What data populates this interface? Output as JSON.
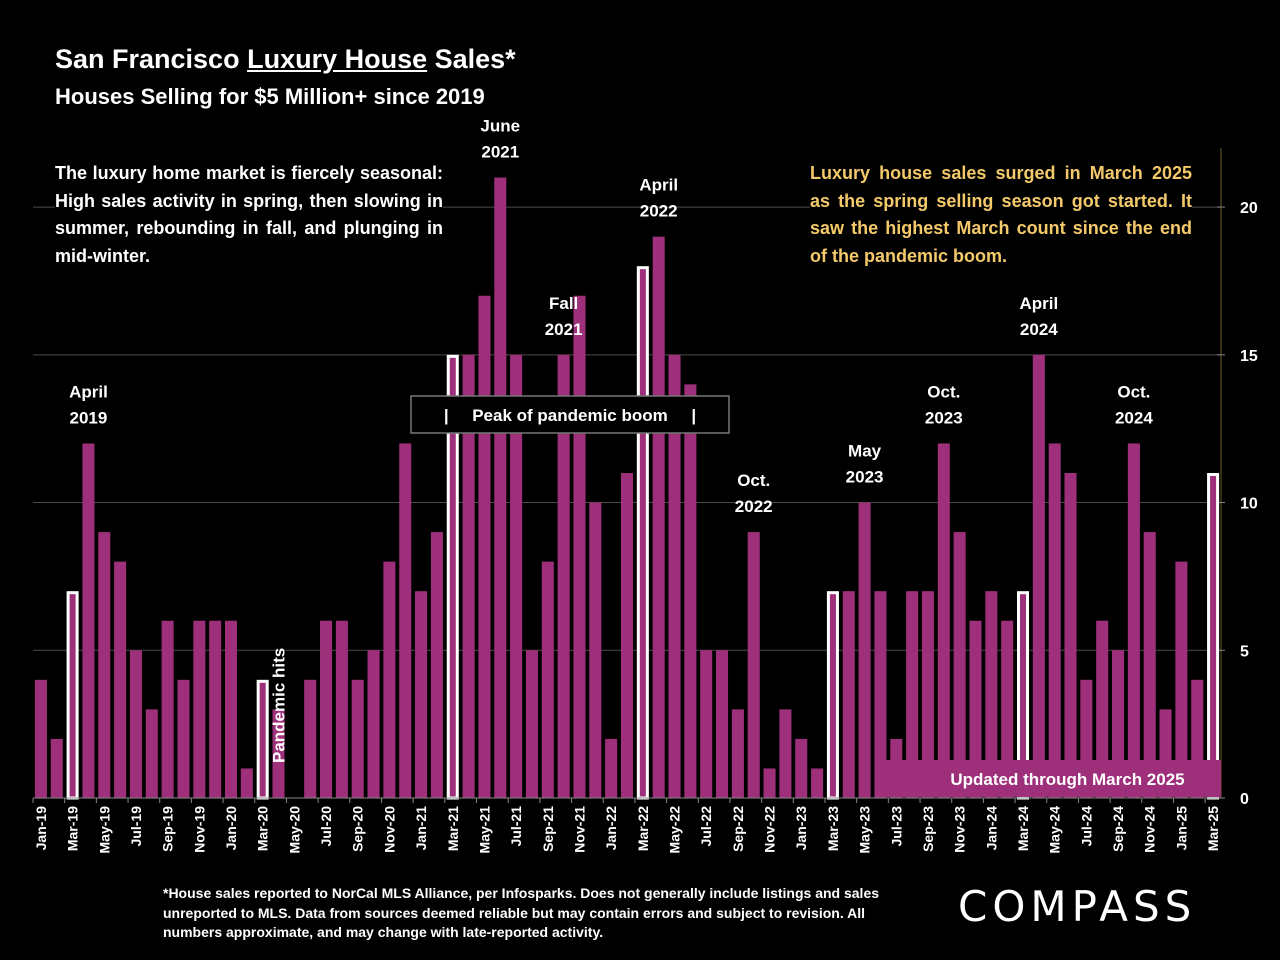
{
  "header": {
    "title_prefix": "San Francisco ",
    "title_underlined": "Luxury House",
    "title_suffix": " Sales*",
    "subtitle": "Houses Selling for $5 Million+ since 2019"
  },
  "notes": {
    "left": "The luxury home market is fiercely seasonal:  High sales activity in spring, then slowing in summer, rebounding in fall, and plunging in mid-winter.",
    "right": "Luxury house sales surged in March 2025 as the spring selling season got started. It saw the highest March count since the end of the pandemic boom."
  },
  "footnote": "*House sales reported to NorCal MLS Alliance, per Infosparks. Does not generally include listings and sales unreported to MLS. Data from sources deemed reliable but may contain errors and subject to revision.  All numbers approximate, and may change with late-reported activity.",
  "logo": "COMPASS",
  "chart_data": {
    "type": "bar",
    "title": "San Francisco Luxury House Sales*",
    "subtitle": "Houses Selling for $5 Million+ since 2019",
    "xlabel": "",
    "ylabel": "",
    "ylim": [
      0,
      22
    ],
    "yticks": [
      0,
      5,
      10,
      15,
      20
    ],
    "y_axis_side": "right",
    "grid": true,
    "bar_color": "#9e2f7a",
    "highlight_outline_color": "#ffffff",
    "categories": [
      "Jan-19",
      "Feb-19",
      "Mar-19",
      "Apr-19",
      "May-19",
      "Jun-19",
      "Jul-19",
      "Aug-19",
      "Sep-19",
      "Oct-19",
      "Nov-19",
      "Dec-19",
      "Jan-20",
      "Feb-20",
      "Mar-20",
      "Apr-20",
      "May-20",
      "Jun-20",
      "Jul-20",
      "Aug-20",
      "Sep-20",
      "Oct-20",
      "Nov-20",
      "Dec-20",
      "Jan-21",
      "Feb-21",
      "Mar-21",
      "Apr-21",
      "May-21",
      "Jun-21",
      "Jul-21",
      "Aug-21",
      "Sep-21",
      "Oct-21",
      "Nov-21",
      "Dec-21",
      "Jan-22",
      "Feb-22",
      "Mar-22",
      "Apr-22",
      "May-22",
      "Jun-22",
      "Jul-22",
      "Aug-22",
      "Sep-22",
      "Oct-22",
      "Nov-22",
      "Dec-22",
      "Jan-23",
      "Feb-23",
      "Mar-23",
      "Apr-23",
      "May-23",
      "Jun-23",
      "Jul-23",
      "Aug-23",
      "Sep-23",
      "Oct-23",
      "Nov-23",
      "Dec-23",
      "Jan-24",
      "Feb-24",
      "Mar-24",
      "Apr-24",
      "May-24",
      "Jun-24",
      "Jul-24",
      "Aug-24",
      "Sep-24",
      "Oct-24",
      "Nov-24",
      "Dec-24",
      "Jan-25",
      "Feb-25",
      "Mar-25"
    ],
    "tick_labels_shown_every": 2,
    "values": [
      4,
      2,
      7,
      12,
      9,
      8,
      5,
      3,
      6,
      4,
      6,
      6,
      6,
      1,
      4,
      3,
      0,
      4,
      6,
      6,
      4,
      5,
      8,
      12,
      7,
      9,
      15,
      15,
      17,
      21,
      15,
      5,
      8,
      15,
      17,
      10,
      2,
      11,
      18,
      19,
      15,
      14,
      5,
      5,
      3,
      9,
      1,
      3,
      2,
      1,
      7,
      7,
      10,
      7,
      2,
      7,
      7,
      12,
      9,
      6,
      7,
      6,
      7,
      15,
      12,
      11,
      4,
      6,
      5,
      12,
      9,
      3,
      8,
      4,
      11
    ],
    "highlighted": [
      "Mar-19",
      "Mar-20",
      "Mar-21",
      "Mar-22",
      "Mar-23",
      "Mar-24",
      "Mar-25"
    ],
    "annotations": [
      {
        "text": [
          "April",
          "2019"
        ],
        "category": "Apr-19"
      },
      {
        "text": [
          "Pandemic hits"
        ],
        "category": "Apr-20",
        "rotated": true
      },
      {
        "text": [
          "June",
          "2021"
        ],
        "category": "Jun-21"
      },
      {
        "text": [
          "Fall",
          "2021"
        ],
        "category": "Oct-21"
      },
      {
        "text": [
          "April",
          "2022"
        ],
        "category": "Apr-22"
      },
      {
        "text": [
          "Oct.",
          "2022"
        ],
        "category": "Oct-22"
      },
      {
        "text": [
          "May",
          "2023"
        ],
        "category": "May-23"
      },
      {
        "text": [
          "Oct.",
          "2023"
        ],
        "category": "Oct-23"
      },
      {
        "text": [
          "April",
          "2024"
        ],
        "category": "Apr-24"
      },
      {
        "text": [
          "Oct.",
          "2024"
        ],
        "category": "Oct-24"
      }
    ],
    "boxed_labels": {
      "peak": "|     Peak of pandemic boom     |",
      "updated": "Updated through March 2025"
    }
  }
}
